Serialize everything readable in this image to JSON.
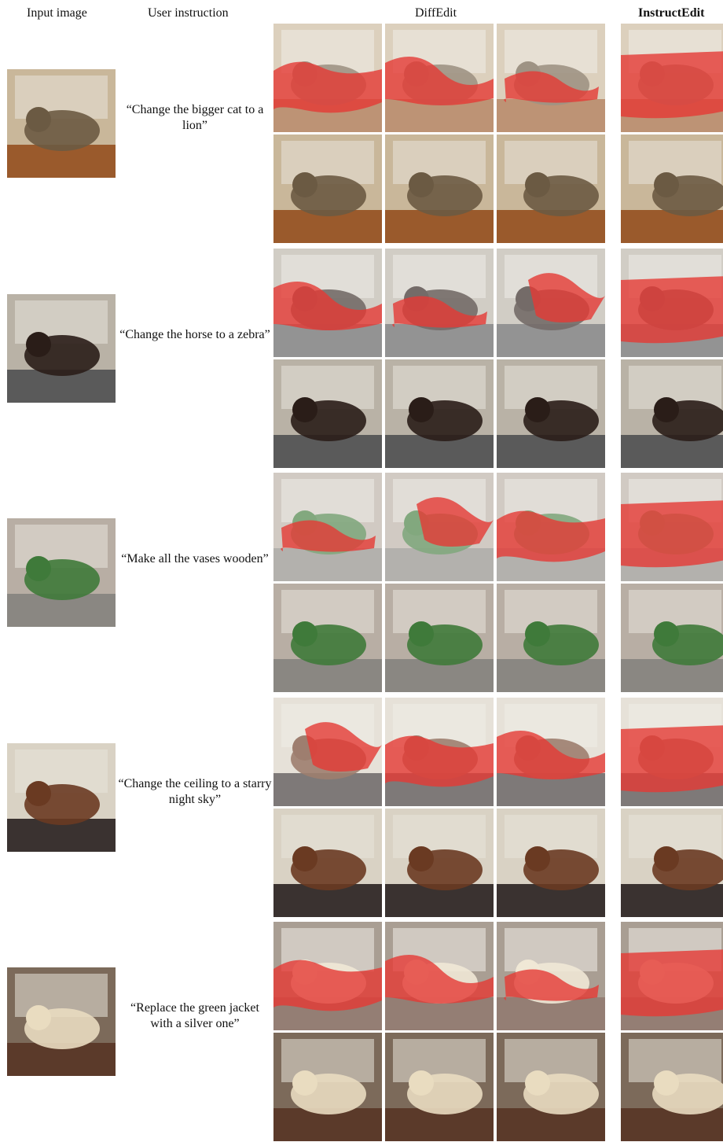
{
  "headers": {
    "input": "Input image",
    "instruction": "User instruction",
    "diffedit": "DiffEdit",
    "instructedit": "InstructEdit"
  },
  "rows": [
    {
      "instruction": "“Change the bigger cat to a lion”",
      "scene": "cat-scene",
      "colors": {
        "bg": "#c9b79a",
        "accent": "#6b5a43",
        "floor": "#9a5a2c"
      }
    },
    {
      "instruction": "“Change the horse to a zebra”",
      "scene": "horse-scene",
      "colors": {
        "bg": "#b9b2a6",
        "accent": "#2a1d18",
        "floor": "#5a5a5a"
      }
    },
    {
      "instruction": "“Make all the vases wooden”",
      "scene": "vases-scene",
      "colors": {
        "bg": "#b8aea4",
        "accent": "#3f7a3a",
        "floor": "#8a8782"
      }
    },
    {
      "instruction": "“Change the ceiling to a starry night sky”",
      "scene": "kitchen-scene",
      "colors": {
        "bg": "#d9d2c4",
        "accent": "#6a3a22",
        "floor": "#3a3230"
      }
    },
    {
      "instruction": "“Replace the green jacket with a silver one”",
      "scene": "bear-scene",
      "colors": {
        "bg": "#7c6a5a",
        "accent": "#e9dcc0",
        "floor": "#5b3a2a"
      }
    }
  ],
  "mask_color": "#e53935"
}
